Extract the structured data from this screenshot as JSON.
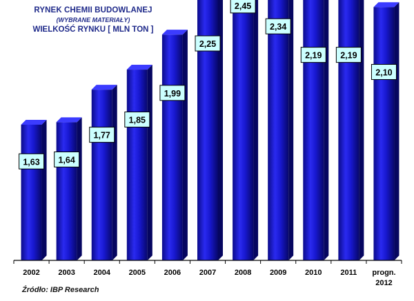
{
  "chart_data": {
    "type": "bar",
    "title": "RYNEK CHEMII BUDOWLANEJ",
    "subtitle": "(WYBRANE MATERIAŁY)",
    "ylabel": "WIELKOŚĆ RYNKU [ MLN TON ]",
    "categories": [
      "2002",
      "2003",
      "2004",
      "2005",
      "2006",
      "2007",
      "2008",
      "2009",
      "2010",
      "2011",
      [
        "progn.",
        "2012"
      ]
    ],
    "values": [
      1.63,
      1.64,
      1.77,
      1.85,
      1.99,
      2.25,
      2.45,
      2.34,
      2.19,
      2.19,
      2.1
    ],
    "data_labels": [
      "1,63",
      "1,64",
      "1,77",
      "1,85",
      "1,99",
      "2,25",
      "2,45",
      "2,34",
      "2,19",
      "2,19",
      "2,10"
    ],
    "bar_color": "#1a1ad6",
    "label_box_color": "#ccffff",
    "grid": false,
    "legend": "none",
    "source": "Źródło:  IBP Research"
  }
}
